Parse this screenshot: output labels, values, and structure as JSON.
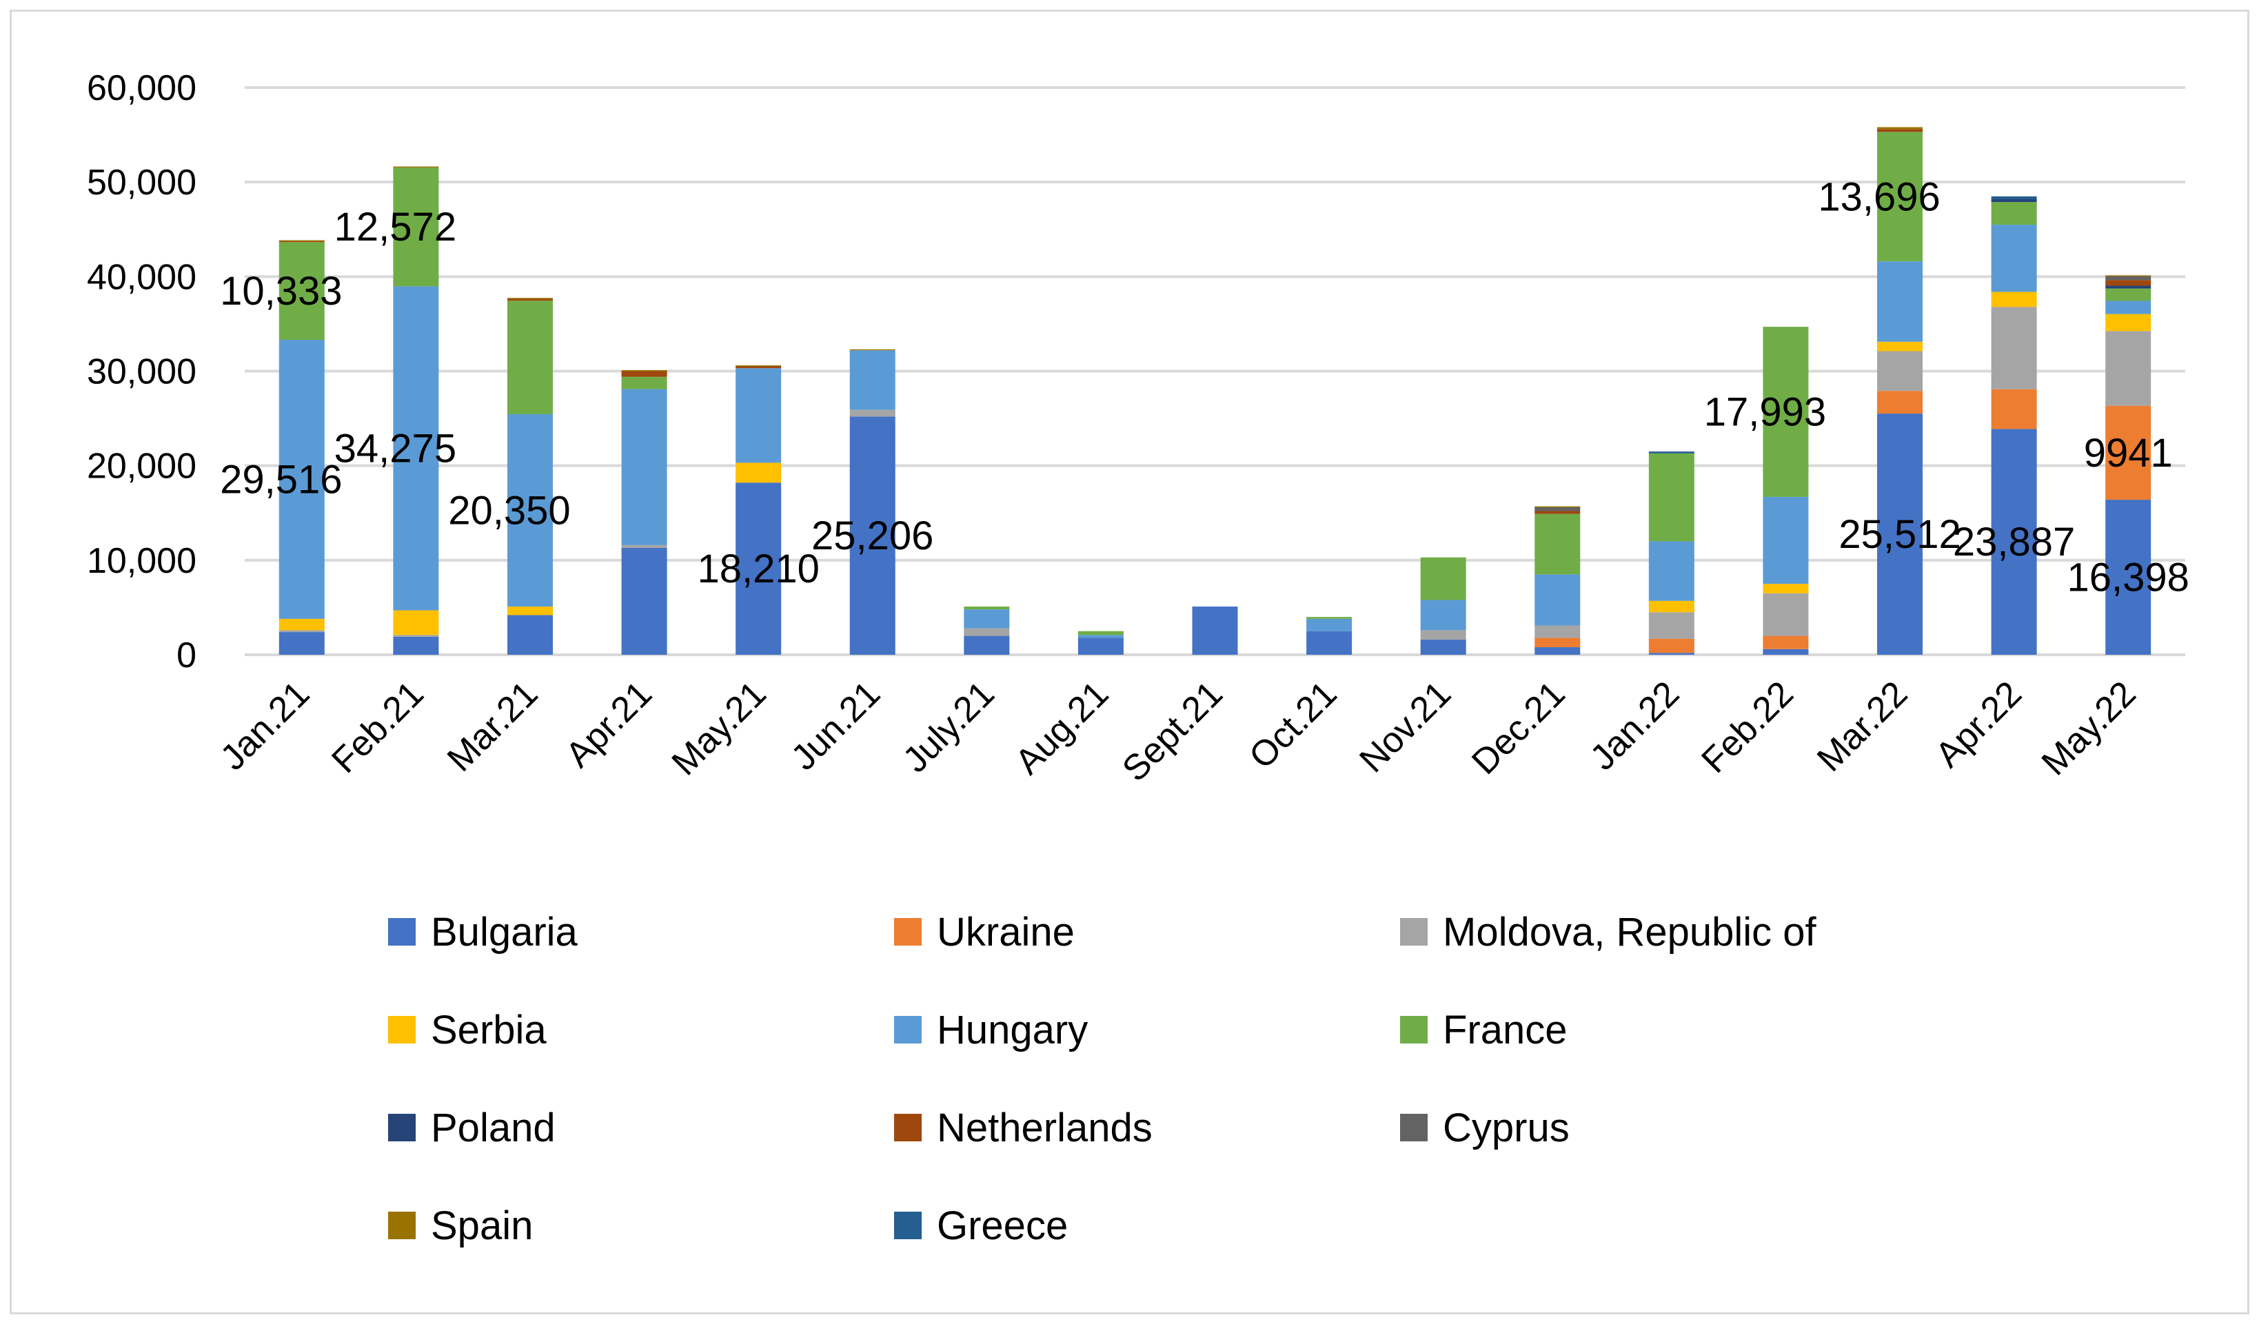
{
  "chart_data": {
    "type": "bar",
    "stacked": true,
    "title": "",
    "xlabel": "",
    "ylabel": "",
    "ylim": [
      0,
      60000
    ],
    "yticks": [
      "0",
      "10,000",
      "20,000",
      "30,000",
      "40,000",
      "50,000",
      "60,000"
    ],
    "grid": true,
    "legend_position": "bottom",
    "categories": [
      "Jan.21",
      "Feb.21",
      "Mar.21",
      "Apr.21",
      "May.21",
      "Jun.21",
      "July.21",
      "Aug.21",
      "Sept.21",
      "Oct.21",
      "Nov.21",
      "Dec.21",
      "Jan.22",
      "Feb.22",
      "Mar.22",
      "Apr.22",
      "May.22"
    ],
    "series": [
      {
        "name": "Bulgaria",
        "color": "#4472c4",
        "values": [
          2400,
          1900,
          4200,
          11300,
          18210,
          25206,
          2000,
          1800,
          5100,
          2500,
          1600,
          800,
          200,
          600,
          25512,
          23887,
          16398
        ]
      },
      {
        "name": "Ukraine",
        "color": "#ed7d31",
        "values": [
          0,
          0,
          0,
          0,
          0,
          0,
          0,
          0,
          0,
          0,
          0,
          1000,
          1500,
          1400,
          2400,
          4200,
          9941
        ]
      },
      {
        "name": "Moldova, Republic of",
        "color": "#a5a5a5",
        "values": [
          200,
          200,
          0,
          300,
          0,
          700,
          800,
          0,
          0,
          0,
          1000,
          1300,
          2800,
          4500,
          4200,
          8700,
          7900
        ]
      },
      {
        "name": "Serbia",
        "color": "#ffc000",
        "values": [
          1200,
          2600,
          900,
          0,
          2100,
          0,
          0,
          0,
          0,
          0,
          0,
          0,
          1200,
          1000,
          1000,
          1600,
          1800
        ]
      },
      {
        "name": "Hungary",
        "color": "#5b9bd5",
        "values": [
          29516,
          34275,
          20350,
          16500,
          10000,
          6300,
          2000,
          300,
          0,
          1300,
          3200,
          5400,
          6300,
          9200,
          8500,
          7100,
          1400
        ]
      },
      {
        "name": "France",
        "color": "#70ad47",
        "values": [
          10333,
          12572,
          12000,
          1300,
          0,
          0,
          300,
          400,
          0,
          200,
          4500,
          6400,
          9300,
          17993,
          13696,
          2400,
          1300
        ]
      },
      {
        "name": "Poland",
        "color": "#264478",
        "values": [
          0,
          0,
          0,
          0,
          0,
          0,
          0,
          0,
          0,
          0,
          0,
          0,
          0,
          0,
          0,
          300,
          300
        ]
      },
      {
        "name": "Netherlands",
        "color": "#9e480e",
        "values": [
          100,
          0,
          200,
          600,
          200,
          0,
          0,
          0,
          0,
          0,
          0,
          300,
          0,
          0,
          300,
          0,
          600
        ]
      },
      {
        "name": "Cyprus",
        "color": "#636363",
        "values": [
          0,
          0,
          0,
          0,
          0,
          0,
          0,
          0,
          0,
          0,
          0,
          400,
          0,
          0,
          0,
          0,
          400
        ]
      },
      {
        "name": "Spain",
        "color": "#997300",
        "values": [
          100,
          100,
          100,
          100,
          100,
          100,
          0,
          0,
          0,
          0,
          0,
          100,
          0,
          0,
          200,
          0,
          100
        ]
      },
      {
        "name": "Greece",
        "color": "#255e91",
        "values": [
          0,
          0,
          0,
          0,
          0,
          0,
          0,
          0,
          0,
          0,
          0,
          0,
          200,
          0,
          0,
          300,
          0
        ]
      }
    ],
    "data_labels": [
      {
        "category": "Jan.21",
        "series": "Hungary",
        "text": "29,516"
      },
      {
        "category": "Jan.21",
        "series": "France",
        "text": "10,333"
      },
      {
        "category": "Feb.21",
        "series": "Hungary",
        "text": "34,275"
      },
      {
        "category": "Feb.21",
        "series": "France",
        "text": "12,572"
      },
      {
        "category": "Mar.21",
        "series": "Hungary",
        "text": "20,350"
      },
      {
        "category": "May.21",
        "series": "Bulgaria",
        "text": "18,210"
      },
      {
        "category": "Jun.21",
        "series": "Bulgaria",
        "text": "25,206"
      },
      {
        "category": "Feb.22",
        "series": "France",
        "text": "17,993"
      },
      {
        "category": "Mar.22",
        "series": "Bulgaria",
        "text": "25,512"
      },
      {
        "category": "Mar.22",
        "series": "France",
        "text": "13,696"
      },
      {
        "category": "Apr.22",
        "series": "Bulgaria",
        "text": "23,887"
      },
      {
        "category": "May.22",
        "series": "Bulgaria",
        "text": "16,398"
      },
      {
        "category": "May.22",
        "series": "Ukraine",
        "text": "9941"
      }
    ]
  }
}
